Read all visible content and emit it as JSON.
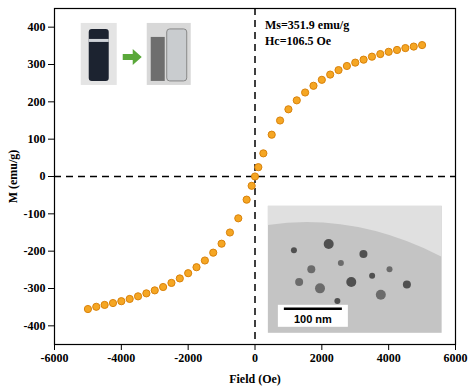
{
  "chart_data": {
    "type": "scatter",
    "x_label": "Field (Oe)",
    "y_label": "M (emu/g)",
    "annotations": [
      "Ms=351.9 emu/g",
      "Hc=106.5 Oe",
      "100 nm"
    ],
    "x": [
      -5000,
      -4750,
      -4500,
      -4250,
      -4000,
      -3750,
      -3500,
      -3250,
      -3000,
      -2750,
      -2500,
      -2250,
      -2000,
      -1750,
      -1500,
      -1250,
      -1000,
      -750,
      -500,
      -250,
      -100,
      0,
      100,
      250,
      500,
      750,
      1000,
      1250,
      1500,
      1750,
      2000,
      2250,
      2500,
      2750,
      3000,
      3250,
      3500,
      3750,
      4000,
      4250,
      4500,
      4750,
      5000
    ],
    "values": [
      -355,
      -349,
      -344,
      -339,
      -334,
      -328,
      -321,
      -313,
      -305,
      -296,
      -285,
      -273,
      -259,
      -243,
      -225,
      -204,
      -180,
      -150,
      -112,
      -62,
      -25,
      0,
      25,
      62,
      112,
      150,
      180,
      204,
      225,
      243,
      259,
      273,
      285,
      296,
      305,
      313,
      321,
      328,
      334,
      339,
      344,
      348,
      352
    ],
    "color": "#f5a623",
    "marker": "circle",
    "xlim": [
      -6000,
      6000
    ],
    "xticks": [
      -6000,
      -4000,
      -2000,
      0,
      2000,
      4000,
      6000
    ],
    "ylim": [
      -450,
      450
    ],
    "yticks": [
      -400,
      -300,
      -200,
      -100,
      0,
      100,
      200,
      300,
      400
    ],
    "hlines": [
      0
    ],
    "vlines": [
      0
    ],
    "grid": false
  }
}
